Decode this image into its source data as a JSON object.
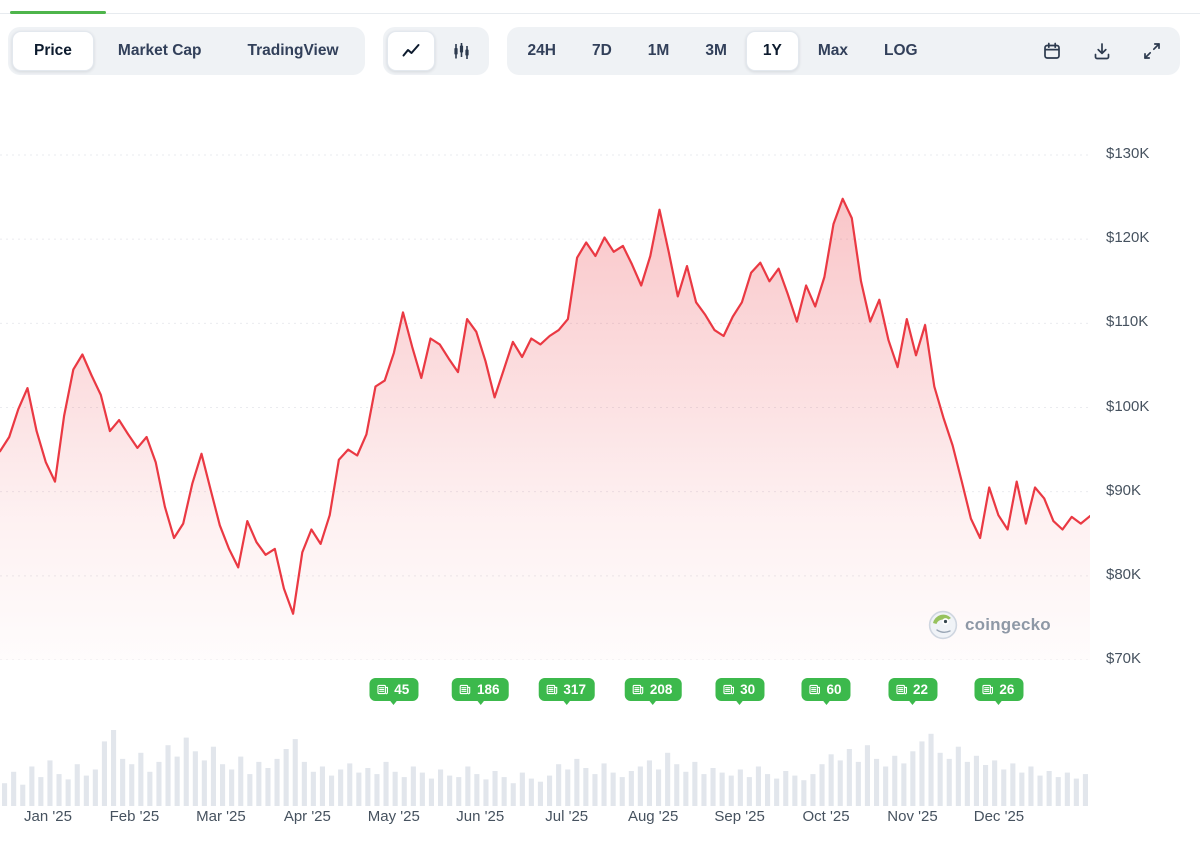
{
  "tabs": {
    "indicator_color": "#4eb54b"
  },
  "toolbar": {
    "view_tabs": [
      {
        "label": "Price",
        "active": true
      },
      {
        "label": "Market Cap",
        "active": false
      },
      {
        "label": "TradingView",
        "active": false
      }
    ],
    "chart_types": [
      {
        "name": "line-chart",
        "active": true
      },
      {
        "name": "candlestick-chart",
        "active": false
      }
    ],
    "ranges": [
      {
        "label": "24H",
        "active": false
      },
      {
        "label": "7D",
        "active": false
      },
      {
        "label": "1M",
        "active": false
      },
      {
        "label": "3M",
        "active": false
      },
      {
        "label": "1Y",
        "active": true
      },
      {
        "label": "Max",
        "active": false
      },
      {
        "label": "LOG",
        "active": false
      }
    ],
    "action_icons": [
      "calendar",
      "download",
      "expand"
    ]
  },
  "watermark": {
    "label": "coingecko"
  },
  "chart_data": {
    "type": "area",
    "title": "",
    "line_color": "#ea3943",
    "annotation_color": "#3cb94c",
    "legend": "off",
    "grid": "horizontal-dashed",
    "x_labels": [
      "Jan '25",
      "Feb '25",
      "Mar '25",
      "Apr '25",
      "May '25",
      "Jun '25",
      "Jul '25",
      "Aug '25",
      "Sep '25",
      "Oct '25",
      "Nov '25",
      "Dec '25"
    ],
    "y_ticks": [
      {
        "label": "$130K",
        "value": 130
      },
      {
        "label": "$120K",
        "value": 120
      },
      {
        "label": "$110K",
        "value": 110
      },
      {
        "label": "$100K",
        "value": 100
      },
      {
        "label": "$90K",
        "value": 90
      },
      {
        "label": "$80K",
        "value": 80
      },
      {
        "label": "$70K",
        "value": 70
      }
    ],
    "ylim_thousands": [
      70,
      130
    ],
    "series": [
      {
        "name": "Price",
        "unit": "USD thousands",
        "values": [
          94.8,
          96.5,
          99.8,
          102.3,
          97.2,
          93.5,
          91.2,
          99.0,
          104.5,
          106.3,
          103.8,
          101.5,
          97.2,
          98.5,
          96.8,
          95.2,
          96.5,
          93.5,
          88.2,
          84.5,
          86.2,
          91.0,
          94.5,
          90.2,
          86.0,
          83.2,
          81.0,
          86.5,
          84.0,
          82.5,
          83.2,
          78.5,
          75.5,
          82.8,
          85.5,
          83.8,
          87.2,
          93.8,
          95.0,
          94.3,
          96.8,
          102.5,
          103.2,
          106.5,
          111.3,
          107.2,
          103.5,
          108.2,
          107.5,
          105.8,
          104.2,
          110.5,
          109.0,
          105.5,
          101.2,
          104.5,
          107.8,
          106.0,
          108.2,
          107.5,
          108.5,
          109.2,
          110.5,
          117.8,
          119.6,
          118.0,
          120.2,
          118.5,
          119.2,
          117.0,
          114.5,
          118.0,
          123.5,
          118.5,
          113.2,
          116.8,
          112.5,
          111.0,
          109.2,
          108.5,
          110.8,
          112.5,
          116.0,
          117.2,
          115.0,
          116.5,
          113.5,
          110.2,
          114.5,
          112.0,
          115.5,
          121.8,
          124.8,
          122.5,
          115.0,
          110.2,
          112.8,
          108.0,
          104.8,
          110.5,
          106.2,
          109.8,
          102.5,
          98.8,
          95.5,
          91.2,
          86.8,
          84.5,
          90.5,
          87.2,
          85.5,
          91.2,
          86.2,
          90.5,
          89.2,
          86.5,
          85.5,
          87.0,
          86.2,
          87.1
        ]
      }
    ],
    "annotations": [
      {
        "label": "45",
        "month_index": 4
      },
      {
        "label": "186",
        "month_index": 5
      },
      {
        "label": "317",
        "month_index": 6
      },
      {
        "label": "208",
        "month_index": 7
      },
      {
        "label": "30",
        "month_index": 8
      },
      {
        "label": "60",
        "month_index": 9
      },
      {
        "label": "22",
        "month_index": 10
      },
      {
        "label": "26",
        "month_index": 11
      }
    ],
    "volume_bars": [
      0.3,
      0.45,
      0.28,
      0.52,
      0.38,
      0.6,
      0.42,
      0.35,
      0.55,
      0.4,
      0.48,
      0.85,
      1.0,
      0.62,
      0.55,
      0.7,
      0.45,
      0.58,
      0.8,
      0.65,
      0.9,
      0.72,
      0.6,
      0.78,
      0.55,
      0.48,
      0.65,
      0.42,
      0.58,
      0.5,
      0.62,
      0.75,
      0.88,
      0.58,
      0.45,
      0.52,
      0.4,
      0.48,
      0.56,
      0.44,
      0.5,
      0.42,
      0.58,
      0.45,
      0.38,
      0.52,
      0.44,
      0.36,
      0.48,
      0.4,
      0.38,
      0.52,
      0.42,
      0.35,
      0.46,
      0.38,
      0.3,
      0.44,
      0.36,
      0.32,
      0.4,
      0.55,
      0.48,
      0.62,
      0.5,
      0.42,
      0.56,
      0.44,
      0.38,
      0.46,
      0.52,
      0.6,
      0.48,
      0.7,
      0.55,
      0.45,
      0.58,
      0.42,
      0.5,
      0.44,
      0.4,
      0.48,
      0.38,
      0.52,
      0.42,
      0.36,
      0.46,
      0.4,
      0.34,
      0.42,
      0.55,
      0.68,
      0.6,
      0.75,
      0.58,
      0.8,
      0.62,
      0.52,
      0.66,
      0.56,
      0.72,
      0.85,
      0.95,
      0.7,
      0.62,
      0.78,
      0.58,
      0.66,
      0.54,
      0.6,
      0.48,
      0.56,
      0.44,
      0.52,
      0.4,
      0.46,
      0.38,
      0.44,
      0.36,
      0.42
    ]
  }
}
